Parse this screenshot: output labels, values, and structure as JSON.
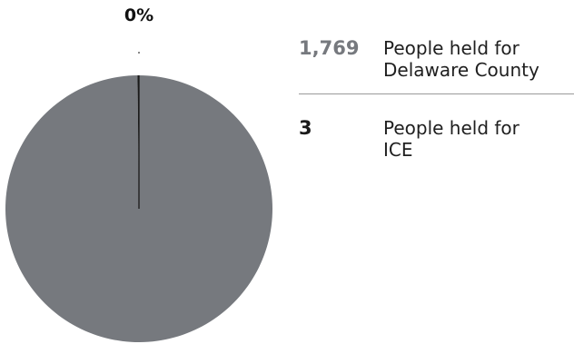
{
  "chart_data": {
    "type": "pie",
    "slices": [
      {
        "label": "People held for Delaware County",
        "value": 1769,
        "color": "#76797e"
      },
      {
        "label": "People held for ICE",
        "value": 3,
        "color": "#1a1a1a"
      }
    ],
    "slice_labels": [
      "0%"
    ]
  },
  "legend": [
    {
      "value": "1,769",
      "label": "People held for\nDelaware County",
      "value_color": "#76797e"
    },
    {
      "value": "3",
      "label": "People held for\nICE",
      "value_color": "#1a1a1a"
    }
  ]
}
